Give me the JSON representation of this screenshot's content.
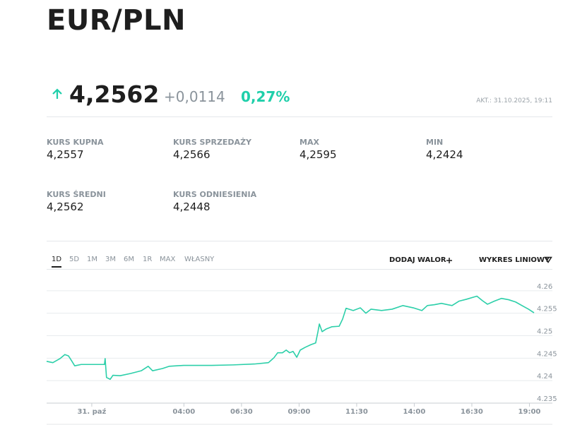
{
  "header": {
    "title": "EUR/PLN"
  },
  "quote": {
    "price": "4,2562",
    "change": "+0,0114",
    "change_percent": "0,27%",
    "updated": "AKT.: 31.10.2025, 19:11"
  },
  "stats": [
    {
      "label": "KURS KUPNA",
      "value": "4,2557"
    },
    {
      "label": "KURS SPRZEDAŻY",
      "value": "4,2566"
    },
    {
      "label": "MAX",
      "value": "4,2595"
    },
    {
      "label": "MIN",
      "value": "4,2424"
    },
    {
      "label": "KURS ŚREDNI",
      "value": "4,2562"
    },
    {
      "label": "KURS ODNIESIENIA",
      "value": "4,2448"
    }
  ],
  "tabs": {
    "ranges": [
      "1D",
      "5D",
      "1M",
      "3M",
      "6M",
      "1R",
      "MAX",
      "WŁASNY"
    ],
    "add": "DODAJ WALOR",
    "chart_type": "WYKRES LINIOWY"
  },
  "chart_data": {
    "type": "line",
    "color": "#2ccfa9",
    "grid": true,
    "x": [
      -1.96,
      -1.69,
      -1.38,
      -1.17,
      -1.01,
      -0.86,
      -0.74,
      -0.46,
      0,
      0.31,
      0.55,
      0.58,
      0.64,
      0.8,
      0.92,
      1.23,
      1.69,
      2.15,
      2.45,
      2.64,
      3.07,
      3.37,
      3.99,
      5.21,
      6.13,
      7.06,
      7.67,
      7.91,
      8.07,
      8.28,
      8.44,
      8.59,
      8.74,
      8.9,
      9.05,
      9.26,
      9.51,
      9.72,
      9.82,
      9.88,
      10.0,
      10.18,
      10.43,
      10.74,
      10.89,
      11.04,
      11.35,
      11.66,
      11.9,
      12.12,
      12.58,
      13.04,
      13.5,
      13.96,
      14.33,
      14.57,
      14.88,
      15.18,
      15.64,
      15.95,
      16.26,
      16.72,
      16.96,
      17.18,
      17.48,
      17.79,
      18.1,
      18.4,
      18.71,
      18.96,
      19.2
    ],
    "values": [
      4.2443,
      4.244,
      4.2449,
      4.2458,
      4.2455,
      4.2443,
      4.2433,
      4.2436,
      4.2436,
      4.2436,
      4.2436,
      4.2449,
      4.2407,
      4.2403,
      4.2412,
      4.2411,
      4.2416,
      4.2422,
      4.2432,
      4.2422,
      4.2427,
      4.2432,
      4.2434,
      4.2434,
      4.2435,
      4.2437,
      4.244,
      4.2451,
      4.2462,
      4.2462,
      4.2468,
      4.2462,
      4.2465,
      4.2452,
      4.2468,
      4.2474,
      4.248,
      4.2484,
      4.2509,
      4.2526,
      4.2509,
      4.2515,
      4.252,
      4.2521,
      4.2537,
      4.2561,
      4.2556,
      4.2562,
      4.255,
      4.2559,
      4.2556,
      4.2559,
      4.2567,
      4.2562,
      4.2556,
      4.2567,
      4.2569,
      4.2572,
      4.2567,
      4.2577,
      4.2581,
      4.2588,
      4.2578,
      4.257,
      4.2577,
      4.2583,
      4.258,
      4.2575,
      4.2566,
      4.2559,
      4.2551
    ],
    "xlim": [
      -1.96,
      19.2
    ],
    "xticks": [
      {
        "value": 0,
        "label": "31. paź"
      },
      {
        "value": 4,
        "label": "04:00"
      },
      {
        "value": 6.5,
        "label": "06:30"
      },
      {
        "value": 9,
        "label": "09:00"
      },
      {
        "value": 11.5,
        "label": "11:30"
      },
      {
        "value": 14,
        "label": "14:00"
      },
      {
        "value": 16.5,
        "label": "16:30"
      },
      {
        "value": 19,
        "label": "19:00"
      }
    ],
    "ylim": [
      4.235,
      4.265
    ],
    "yticks": [
      4.235,
      4.24,
      4.245,
      4.25,
      4.255,
      4.26
    ]
  }
}
